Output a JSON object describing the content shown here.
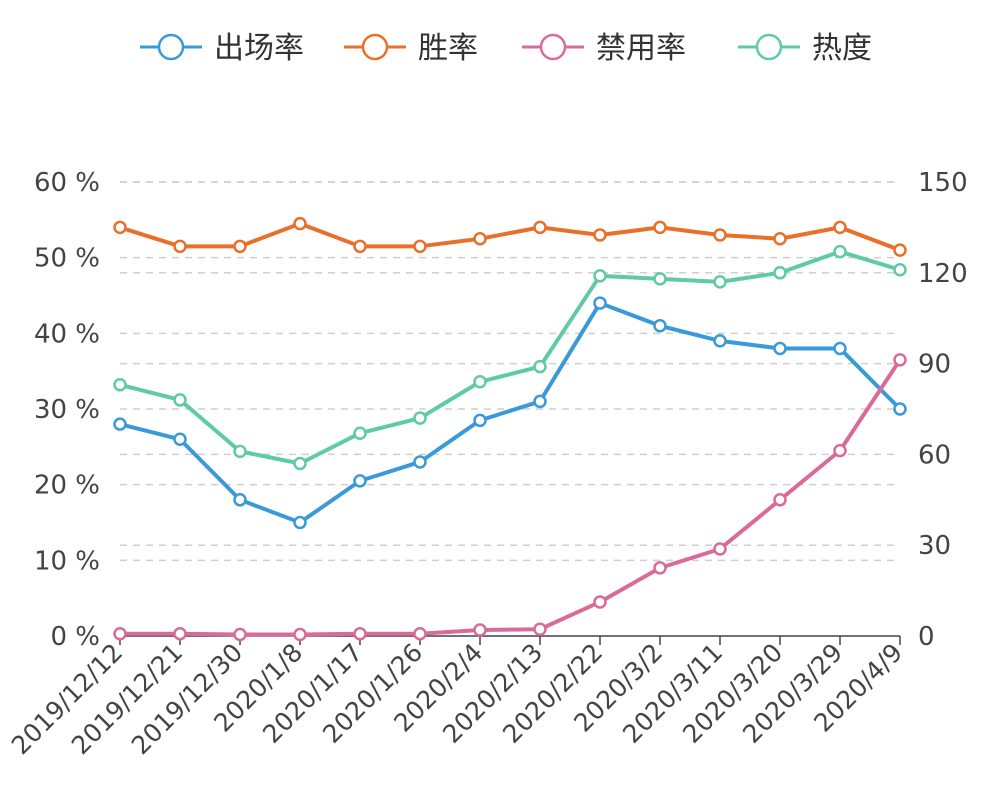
{
  "chart_data": {
    "type": "line",
    "x": [
      "2019/12/12",
      "2019/12/21",
      "2019/12/30",
      "2020/1/8",
      "2020/1/17",
      "2020/1/26",
      "2020/2/4",
      "2020/2/13",
      "2020/2/22",
      "2020/3/2",
      "2020/3/11",
      "2020/3/20",
      "2020/3/29",
      "2020/4/9"
    ],
    "left_axis": {
      "ticks": [
        "0 %",
        "10 %",
        "20 %",
        "30 %",
        "40 %",
        "50 %",
        "60 %"
      ],
      "range": [
        0,
        60
      ]
    },
    "right_axis": {
      "ticks": [
        "0",
        "30",
        "60",
        "90",
        "120",
        "150"
      ],
      "range": [
        0,
        150
      ]
    },
    "grid": true,
    "legend_position": "top",
    "series": [
      {
        "name": "出场率",
        "color": "#3a9ad9",
        "axis": "left",
        "values": [
          28,
          26,
          18,
          15,
          20.5,
          23,
          28.5,
          31,
          44,
          41,
          39,
          38,
          38,
          30
        ]
      },
      {
        "name": "胜率",
        "color": "#e8702a",
        "axis": "left",
        "values": [
          54,
          51.5,
          51.5,
          54.5,
          51.5,
          51.5,
          52.5,
          54,
          53,
          54,
          53,
          52.5,
          54,
          51
        ]
      },
      {
        "name": "禁用率",
        "color": "#d96b9b",
        "axis": "left",
        "values": [
          0.3,
          0.3,
          0.2,
          0.2,
          0.3,
          0.3,
          0.8,
          0.9,
          4.5,
          9,
          11.5,
          18,
          24.5,
          36.5
        ]
      },
      {
        "name": "热度",
        "color": "#5fcba3",
        "axis": "right",
        "values": [
          83,
          78,
          61,
          57,
          67,
          72,
          84,
          89,
          119,
          118,
          117,
          120,
          127,
          121
        ]
      }
    ]
  }
}
